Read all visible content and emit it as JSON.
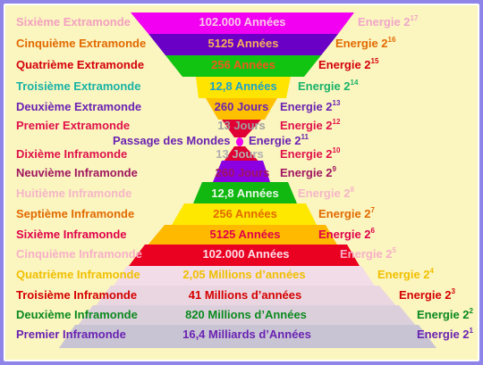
{
  "levels": [
    {
      "name": "Sixième Extramonde",
      "value": "102.000 Années",
      "energy_base": "Energie 2",
      "energy_exp": "17",
      "bar_color": "#f200f2",
      "name_color": "#f3a0c0",
      "value_color": "#fbc8e8",
      "energy_color": "#f0a7c8"
    },
    {
      "name": "Cinquième Extramonde",
      "value": "5125 Années",
      "energy_base": "Energie 2",
      "energy_exp": "16",
      "bar_color": "#6a00c6",
      "name_color": "#e26a00",
      "value_color": "#f7b05a",
      "energy_color": "#e26a00"
    },
    {
      "name": "Quatrième Extramonde",
      "value": "256 Années",
      "energy_base": "Energie 2",
      "energy_exp": "15",
      "bar_color": "#11c411",
      "name_color": "#d4000a",
      "value_color": "#f05a1e",
      "energy_color": "#d4000a"
    },
    {
      "name": "Troisième Extramonde",
      "value": "12,8 Années",
      "energy_base": "Energie 2",
      "energy_exp": "14",
      "bar_color": "#ffe400",
      "name_color": "#17b3a6",
      "value_color": "#1aa2c9",
      "energy_color": "#17b36a"
    },
    {
      "name": "Deuxième Extramonde",
      "value": "260 Jours",
      "energy_base": "Energie 2",
      "energy_exp": "13",
      "bar_color": "#ffc000",
      "name_color": "#6a22b2",
      "value_color": "#6a22b2",
      "energy_color": "#6a22b2"
    },
    {
      "name": "Premier Extramonde",
      "value": "13 Jours",
      "energy_base": "Energie 2",
      "energy_exp": "12",
      "bar_color": "#e00034",
      "name_color": "#e0104a",
      "value_color": "#a0a0a0",
      "energy_color": "#e0104a"
    },
    {
      "name": "Dixième Inframonde",
      "value": "13 Jours",
      "energy_base": "Energie 2",
      "energy_exp": "10",
      "bar_color": "#e00034",
      "name_color": "#e0104a",
      "value_color": "#b0b0b0",
      "energy_color": "#e0104a"
    },
    {
      "name": "Neuvième Inframonde",
      "value": "260 Jours",
      "energy_base": "Energie 2",
      "energy_exp": "9",
      "bar_color": "#8a00e0",
      "name_color": "#a01660",
      "value_color": "#a01660",
      "energy_color": "#a01660"
    },
    {
      "name": "Huitième Inframonde",
      "value": "12,8 Années",
      "energy_base": "Energie 2",
      "energy_exp": "8",
      "bar_color": "#10b810",
      "name_color": "#f5b6c8",
      "value_color": "#e8f8e8",
      "energy_color": "#f5b6c8"
    },
    {
      "name": "Septième Inframonde",
      "value": "256 Années",
      "energy_base": "Energie 2",
      "energy_exp": "7",
      "bar_color": "#ffe800",
      "name_color": "#e26a00",
      "value_color": "#e26a00",
      "energy_color": "#e26a00"
    },
    {
      "name": "Sixième Inframonde",
      "value": "5125 Années",
      "energy_base": "Energie 2",
      "energy_exp": "6",
      "bar_color": "#ffba00",
      "name_color": "#e0004a",
      "value_color": "#e0004a",
      "energy_color": "#e0004a"
    },
    {
      "name": "Cinquième Inframonde",
      "value": "102.000 Années",
      "energy_base": "Energie 2",
      "energy_exp": "5",
      "bar_color": "#ea0020",
      "name_color": "#f7b0c8",
      "value_color": "#fde0e8",
      "energy_color": "#f7b0c8"
    },
    {
      "name": "Quatrième Inframonde",
      "value": "2,05 Millions d’années",
      "energy_base": "Energie 2",
      "energy_exp": "4",
      "bar_color": "#f2dce8",
      "name_color": "#f0c000",
      "value_color": "#f0c000",
      "energy_color": "#f0c000"
    },
    {
      "name": "Troisième Inframonde",
      "value": "41 Millions d’années",
      "energy_base": "Energie 2",
      "energy_exp": "3",
      "bar_color": "#ead6e0",
      "name_color": "#d40000",
      "value_color": "#d40000",
      "energy_color": "#d40000"
    },
    {
      "name": "Deuxième Inframonde",
      "value": "820 Millions d’Années",
      "energy_base": "Energie 2",
      "energy_exp": "2",
      "bar_color": "#dccfdc",
      "name_color": "#0a8a1e",
      "value_color": "#0a8a1e",
      "energy_color": "#0a8a1e"
    },
    {
      "name": "Premier Inframonde",
      "value": "16,4 Milliards d’Années",
      "energy_base": "Energie 2",
      "energy_exp": "1",
      "bar_color": "#c8c4d4",
      "name_color": "#6a22b2",
      "value_color": "#6a22b2",
      "energy_color": "#6a22b2"
    }
  ],
  "passage": {
    "label": "Passage des Mondes",
    "energy_base": "Energie 2",
    "energy_exp": "11",
    "label_color": "#6a22b2",
    "dot_color": "#f200f2"
  },
  "colors": {
    "background": "#fbf5bf",
    "border": "#8f84e8"
  }
}
